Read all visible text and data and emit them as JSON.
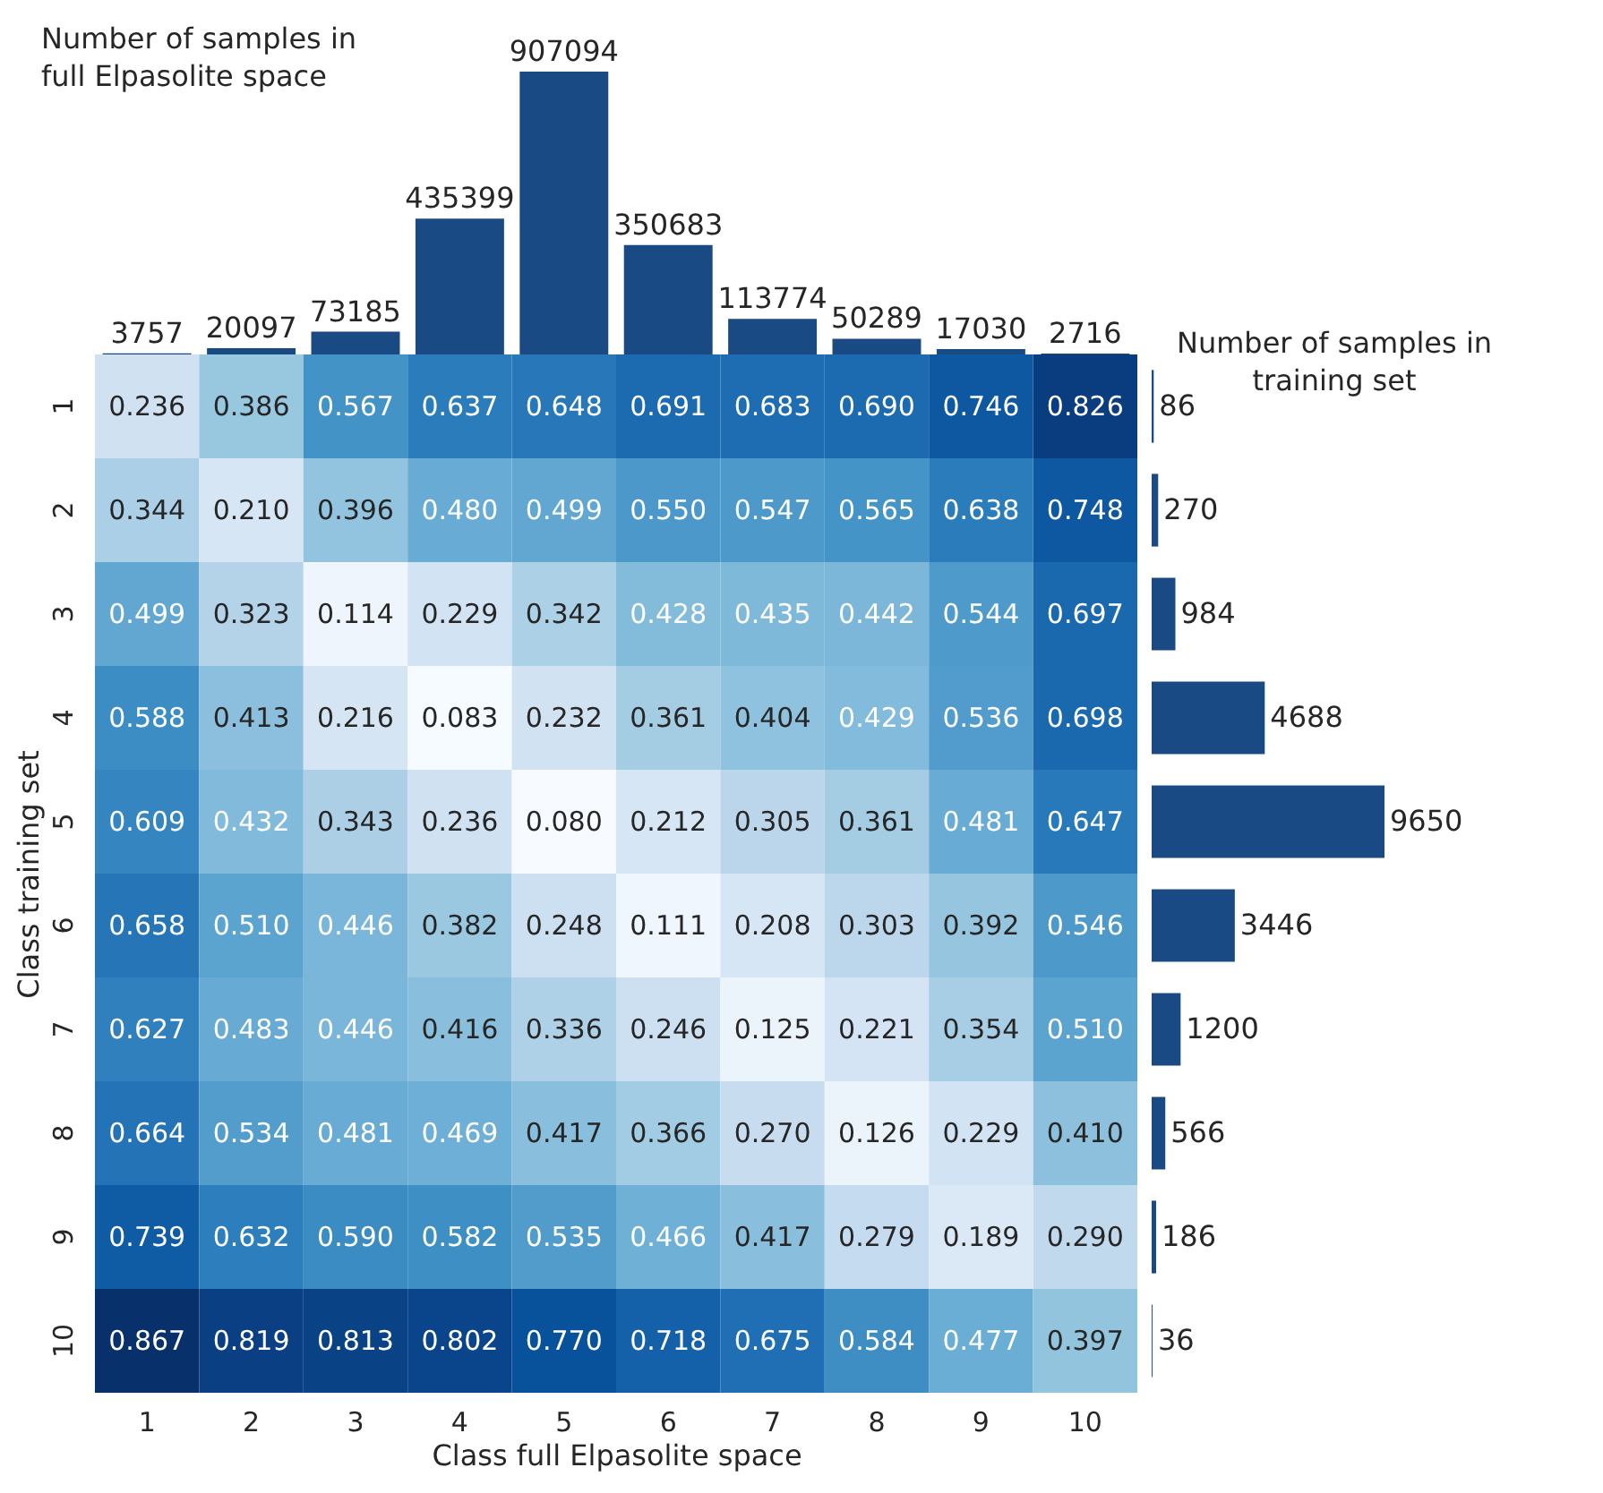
{
  "chart_data": [
    {
      "type": "bar",
      "title": "Number of samples in full Elpasolite space",
      "categories": [
        "1",
        "2",
        "3",
        "4",
        "5",
        "6",
        "7",
        "8",
        "9",
        "10"
      ],
      "values": [
        3757,
        20097,
        73185,
        435399,
        907094,
        350683,
        113774,
        50289,
        17030,
        2716
      ],
      "color": "#1a4a84",
      "data_labels": true,
      "tick_labels": false
    },
    {
      "type": "heatmap",
      "data_labels": true,
      "xlabel": "Class full Elpasolite space",
      "ylabel": "Class training set",
      "categories": [
        "1",
        "2",
        "3",
        "4",
        "5",
        "6",
        "7",
        "8",
        "9",
        "10"
      ],
      "y_categories": [
        "1",
        "2",
        "3",
        "4",
        "5",
        "6",
        "7",
        "8",
        "9",
        "10"
      ],
      "cells": [
        [
          0.236,
          0.386,
          0.567,
          0.637,
          0.648,
          0.691,
          0.683,
          0.69,
          0.746,
          0.826
        ],
        [
          0.344,
          0.21,
          0.396,
          0.48,
          0.499,
          0.55,
          0.547,
          0.565,
          0.638,
          0.748
        ],
        [
          0.499,
          0.323,
          0.114,
          0.229,
          0.342,
          0.428,
          0.435,
          0.442,
          0.544,
          0.697
        ],
        [
          0.588,
          0.413,
          0.216,
          0.083,
          0.232,
          0.361,
          0.404,
          0.429,
          0.536,
          0.698
        ],
        [
          0.609,
          0.432,
          0.343,
          0.236,
          0.08,
          0.212,
          0.305,
          0.361,
          0.481,
          0.647
        ],
        [
          0.658,
          0.51,
          0.446,
          0.382,
          0.248,
          0.111,
          0.208,
          0.303,
          0.392,
          0.546
        ],
        [
          0.627,
          0.483,
          0.446,
          0.416,
          0.336,
          0.246,
          0.125,
          0.221,
          0.354,
          0.51
        ],
        [
          0.664,
          0.534,
          0.481,
          0.469,
          0.417,
          0.366,
          0.27,
          0.126,
          0.229,
          0.41
        ],
        [
          0.739,
          0.632,
          0.59,
          0.582,
          0.535,
          0.466,
          0.417,
          0.279,
          0.189,
          0.29
        ],
        [
          0.867,
          0.819,
          0.813,
          0.802,
          0.77,
          0.718,
          0.675,
          0.584,
          0.477,
          0.397
        ]
      ],
      "cell_labels": [
        [
          "0.236",
          "0.386",
          "0.567",
          "0.637",
          "0.648",
          "0.691",
          "0.683",
          "0.690",
          "0.746",
          "0.826"
        ],
        [
          "0.344",
          "0.210",
          "0.396",
          "0.480",
          "0.499",
          "0.550",
          "0.547",
          "0.565",
          "0.638",
          "0.748"
        ],
        [
          "0.499",
          "0.323",
          "0.114",
          "0.229",
          "0.342",
          "0.428",
          "0.435",
          "0.442",
          "0.544",
          "0.697"
        ],
        [
          "0.588",
          "0.413",
          "0.216",
          "0.083",
          "0.232",
          "0.361",
          "0.404",
          "0.429",
          "0.536",
          "0.698"
        ],
        [
          "0.609",
          "0.432",
          "0.343",
          "0.236",
          "0.080",
          "0.212",
          "0.305",
          "0.361",
          "0.481",
          "0.647"
        ],
        [
          "0.658",
          "0.510",
          "0.446",
          "0.382",
          "0.248",
          "0.111",
          "0.208",
          "0.303",
          "0.392",
          "0.546"
        ],
        [
          "0.627",
          "0.483",
          "0.446",
          "0.416",
          "0.336",
          "0.246",
          "0.125",
          "0.221",
          "0.354",
          "0.510"
        ],
        [
          "0.664",
          "0.534",
          "0.481",
          "0.469",
          "0.417",
          "0.366",
          "0.270",
          "0.126",
          "0.229",
          "0.410"
        ],
        [
          "0.739",
          "0.632",
          "0.590",
          "0.582",
          "0.535",
          "0.466",
          "0.417",
          "0.279",
          "0.189",
          "0.290"
        ],
        [
          "0.867",
          "0.819",
          "0.813",
          "0.802",
          "0.770",
          "0.718",
          "0.675",
          "0.584",
          "0.477",
          "0.397"
        ]
      ]
    },
    {
      "type": "bar",
      "orientation": "horizontal",
      "title": "Number of samples in training set",
      "categories": [
        "1",
        "2",
        "3",
        "4",
        "5",
        "6",
        "7",
        "8",
        "9",
        "10"
      ],
      "values": [
        86,
        270,
        984,
        4688,
        9650,
        3446,
        1200,
        566,
        186,
        36
      ],
      "color": "#1a4a84",
      "data_labels": true,
      "tick_labels": false
    }
  ]
}
